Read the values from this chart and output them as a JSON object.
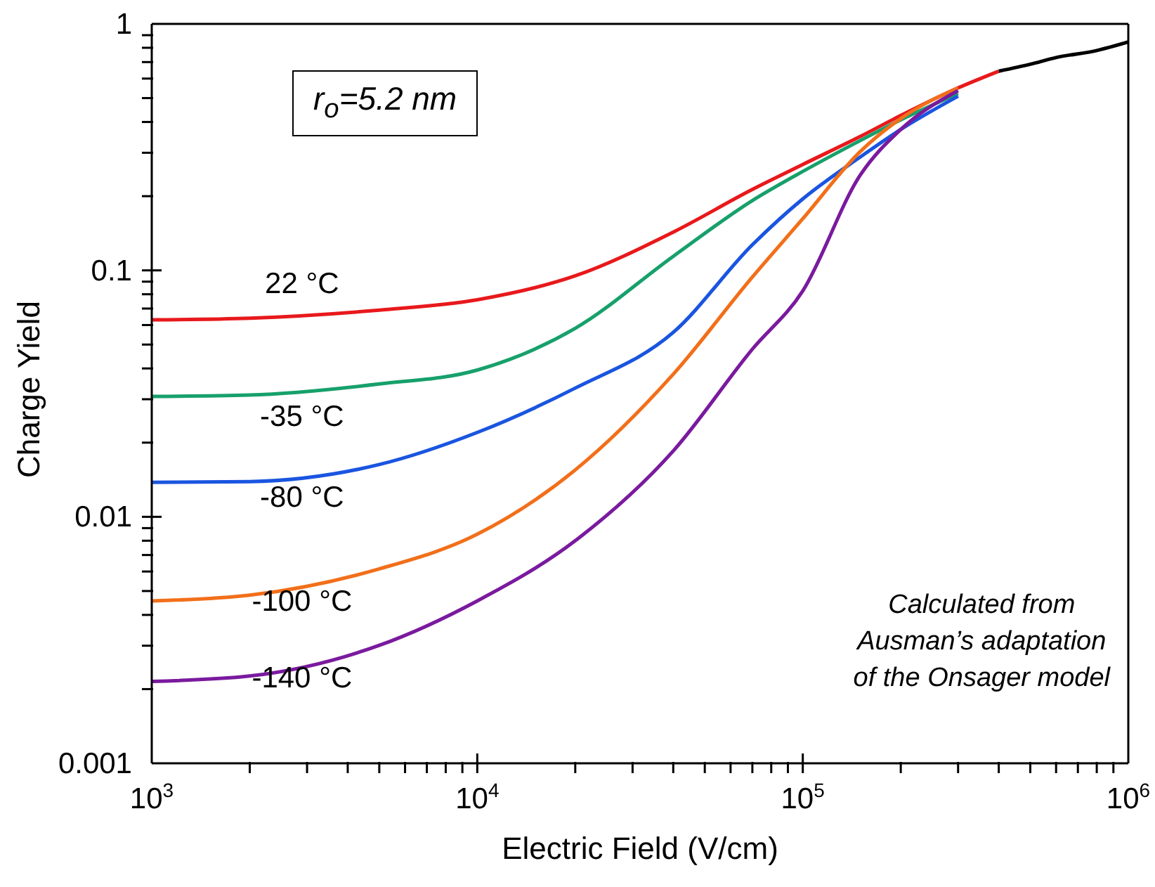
{
  "chart_data": {
    "type": "line",
    "xlabel": "Electric Field (V/cm)",
    "ylabel": "Charge Yield",
    "log": "xy",
    "grid": false,
    "legend": false,
    "marker": "none",
    "line_style": "solid",
    "xlim": [
      1000,
      1000000
    ],
    "ylim": [
      0.001,
      1
    ],
    "xticks": [
      {
        "value": 1000,
        "label": "10$^{3}$"
      },
      {
        "value": 2000,
        "label": null
      },
      {
        "value": 3000,
        "label": null
      },
      {
        "value": 4000,
        "label": null
      },
      {
        "value": 5000,
        "label": null
      },
      {
        "value": 6000,
        "label": null
      },
      {
        "value": 7000,
        "label": null
      },
      {
        "value": 8000,
        "label": null
      },
      {
        "value": 9000,
        "label": null
      },
      {
        "value": 10000,
        "label": "10$^{4}$"
      },
      {
        "value": 20000,
        "label": null
      },
      {
        "value": 30000,
        "label": null
      },
      {
        "value": 40000,
        "label": null
      },
      {
        "value": 50000,
        "label": null
      },
      {
        "value": 60000,
        "label": null
      },
      {
        "value": 70000,
        "label": null
      },
      {
        "value": 80000,
        "label": null
      },
      {
        "value": 90000,
        "label": null
      },
      {
        "value": 100000,
        "label": "10$^{5}$"
      },
      {
        "value": 200000,
        "label": null
      },
      {
        "value": 300000,
        "label": null
      },
      {
        "value": 400000,
        "label": null
      },
      {
        "value": 500000,
        "label": null
      },
      {
        "value": 600000,
        "label": null
      },
      {
        "value": 700000,
        "label": null
      },
      {
        "value": 800000,
        "label": null
      },
      {
        "value": 900000,
        "label": null
      },
      {
        "value": 1000000,
        "label": "10$^{6}$"
      }
    ],
    "yticks": [
      0.001,
      {
        "value": 0.002,
        "label": null
      },
      {
        "value": 0.003,
        "label": null
      },
      {
        "value": 0.004,
        "label": null
      },
      {
        "value": 0.005,
        "label": null
      },
      {
        "value": 0.006,
        "label": null
      },
      {
        "value": 0.007,
        "label": null
      },
      {
        "value": 0.008,
        "label": null
      },
      {
        "value": 0.009,
        "label": null
      },
      0.01,
      {
        "value": 0.02,
        "label": null
      },
      {
        "value": 0.03,
        "label": null
      },
      {
        "value": 0.04,
        "label": null
      },
      {
        "value": 0.05,
        "label": null
      },
      {
        "value": 0.06,
        "label": null
      },
      {
        "value": 0.07,
        "label": null
      },
      {
        "value": 0.08,
        "label": null
      },
      {
        "value": 0.09,
        "label": null
      },
      0.1,
      {
        "value": 0.2,
        "label": null
      },
      {
        "value": 0.3,
        "label": null
      },
      {
        "value": 0.4,
        "label": null
      },
      {
        "value": 0.5,
        "label": null
      },
      {
        "value": 0.6,
        "label": null
      },
      {
        "value": 0.7,
        "label": null
      },
      {
        "value": 0.8,
        "label": null
      },
      {
        "value": 0.9,
        "label": null
      },
      1
    ],
    "series": [
      {
        "name": "22 °C",
        "color": "#e8191c",
        "x": [
          1000,
          2000,
          5000,
          10000,
          20000,
          40000,
          70000,
          100000,
          150000,
          200000,
          300000,
          400000
        ],
        "values": [
          0.063,
          0.064,
          0.069,
          0.076,
          0.095,
          0.143,
          0.213,
          0.269,
          0.349,
          0.425,
          0.55,
          0.643
        ]
      },
      {
        "name": "-35 °C",
        "color": "#17a06b",
        "x": [
          1000,
          2000,
          5000,
          10000,
          20000,
          40000,
          70000,
          100000,
          150000,
          200000,
          300000
        ],
        "values": [
          0.0308,
          0.0312,
          0.0346,
          0.0394,
          0.0582,
          0.114,
          0.192,
          0.252,
          0.336,
          0.408,
          0.522
        ]
      },
      {
        "name": "-80 °C",
        "color": "#1a55e0",
        "x": [
          1000,
          2000,
          5000,
          10000,
          20000,
          40000,
          70000,
          100000,
          150000,
          200000,
          300000
        ],
        "values": [
          0.0138,
          0.0139,
          0.0163,
          0.022,
          0.0333,
          0.056,
          0.127,
          0.195,
          0.288,
          0.373,
          0.509
        ]
      },
      {
        "name": "-100 °C",
        "color": "#f26f1a",
        "x": [
          1000,
          2000,
          5000,
          10000,
          20000,
          40000,
          70000,
          100000,
          150000,
          200000,
          300000
        ],
        "values": [
          0.00456,
          0.00481,
          0.00615,
          0.0085,
          0.0155,
          0.0379,
          0.094,
          0.162,
          0.303,
          0.413,
          0.55
        ]
      },
      {
        "name": "-140 °C",
        "color": "#7a1a9e",
        "x": [
          1000,
          2000,
          5000,
          10000,
          20000,
          40000,
          70000,
          100000,
          150000,
          200000,
          300000
        ],
        "values": [
          0.00215,
          0.00226,
          0.00301,
          0.00456,
          0.008,
          0.0185,
          0.0479,
          0.0826,
          0.243,
          0.373,
          0.536
        ]
      },
      {
        "color": "#000000",
        "x": [
          400000,
          500000,
          600000,
          800000,
          1000000
        ],
        "values": [
          0.643,
          0.686,
          0.73,
          0.78,
          0.845
        ]
      }
    ],
    "annotations": [
      "r$_{o}$=5.2 nm",
      "Calculated from\nAusman’s adaptation\nof the Onsager model"
    ]
  }
}
